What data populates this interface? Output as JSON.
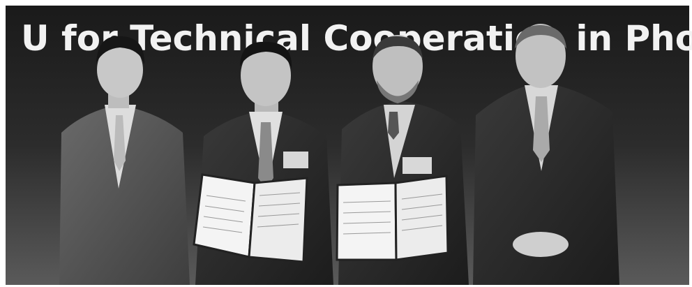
{
  "banner": {
    "text": "U for Technical Cooperation in Pho"
  }
}
